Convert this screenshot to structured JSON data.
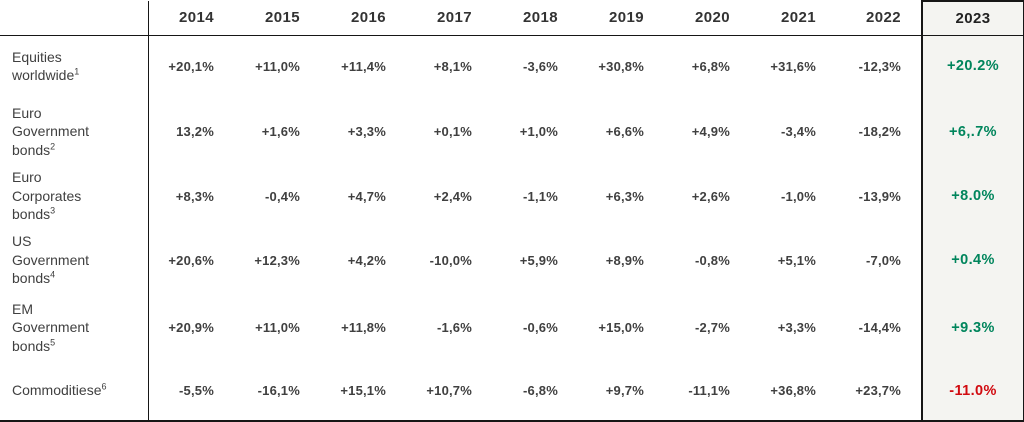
{
  "colors": {
    "positive": "#00855C",
    "negative": "#D10A10",
    "header_text": "#333333",
    "body_text": "#404040",
    "highlight_bg": "#F4F4F1",
    "line": "#161616"
  },
  "table": {
    "years": [
      "2014",
      "2015",
      "2016",
      "2017",
      "2018",
      "2019",
      "2020",
      "2021",
      "2022",
      "2023"
    ],
    "rows": [
      {
        "label": "Equities worldwide",
        "footnote": "1",
        "values": [
          "+20,1%",
          "+11,0%",
          "+11,4%",
          "+8,1%",
          "-3,6%",
          "+30,8%",
          "+6,8%",
          "+31,6%",
          "-12,3%"
        ],
        "value_2023": "+20.2%",
        "trend_2023": "positive"
      },
      {
        "label": "Euro Government bonds",
        "footnote": "2",
        "values": [
          "13,2%",
          "+1,6%",
          "+3,3%",
          "+0,1%",
          "+1,0%",
          "+6,6%",
          "+4,9%",
          "-3,4%",
          "-18,2%"
        ],
        "value_2023": "+6,.7%",
        "trend_2023": "positive"
      },
      {
        "label": "Euro Corporates bonds",
        "footnote": "3",
        "values": [
          "+8,3%",
          "-0,4%",
          "+4,7%",
          "+2,4%",
          "-1,1%",
          "+6,3%",
          "+2,6%",
          "-1,0%",
          "-13,9%"
        ],
        "value_2023": "+8.0%",
        "trend_2023": "positive"
      },
      {
        "label": "US Government bonds",
        "footnote": "4",
        "values": [
          "+20,6%",
          "+12,3%",
          "+4,2%",
          "-10,0%",
          "+5,9%",
          "+8,9%",
          "-0,8%",
          "+5,1%",
          "-7,0%"
        ],
        "value_2023": "+0.4%",
        "trend_2023": "positive"
      },
      {
        "label": "EM Government bonds",
        "footnote": "5",
        "values": [
          "+20,9%",
          "+11,0%",
          "+11,8%",
          "-1,6%",
          "-0,6%",
          "+15,0%",
          "-2,7%",
          "+3,3%",
          "-14,4%"
        ],
        "value_2023": "+9.3%",
        "trend_2023": "positive"
      },
      {
        "label": "Commoditiese",
        "footnote": "6",
        "values": [
          "-5,5%",
          "-16,1%",
          "+15,1%",
          "+10,7%",
          "-6,8%",
          "+9,7%",
          "-11,1%",
          "+36,8%",
          "+23,7%"
        ],
        "value_2023": "-11.0%",
        "trend_2023": "negative"
      }
    ]
  }
}
